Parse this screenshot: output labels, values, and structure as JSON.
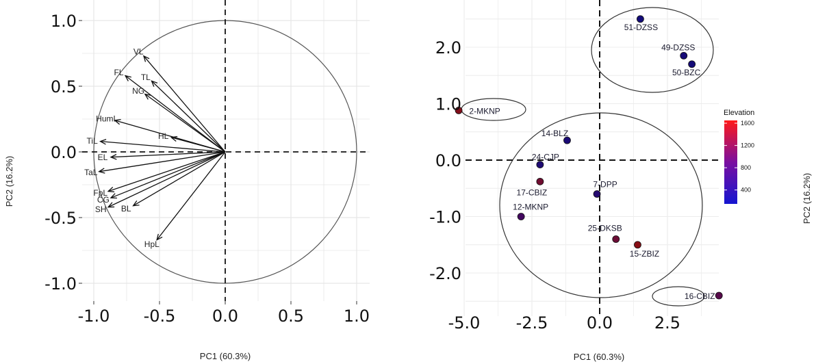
{
  "chart_data": [
    {
      "type": "scatter",
      "kind": "pca-variable-loadings",
      "xlabel": "PC1 (60.3%)",
      "ylabel": "PC2 (16.2%)",
      "xlim": [
        -1.0,
        1.0
      ],
      "ylim": [
        -1.0,
        1.0
      ],
      "x_ticks": [
        "-1.0",
        "-0.5",
        "0.0",
        "0.5",
        "1.0"
      ],
      "y_ticks": [
        "1.0",
        "0.5",
        "0.0",
        "-0.5",
        "-1.0"
      ],
      "grid": true,
      "correlation_circle": true,
      "loadings": [
        {
          "label": "VL",
          "x": -0.62,
          "y": 0.73
        },
        {
          "label": "TL",
          "x": -0.56,
          "y": 0.54
        },
        {
          "label": "FL",
          "x": -0.76,
          "y": 0.58
        },
        {
          "label": "NG",
          "x": -0.61,
          "y": 0.44
        },
        {
          "label": "HumL",
          "x": -0.84,
          "y": 0.24
        },
        {
          "label": "HL",
          "x": -0.41,
          "y": 0.11
        },
        {
          "label": "TiL",
          "x": -0.95,
          "y": 0.08
        },
        {
          "label": "EL",
          "x": -0.87,
          "y": -0.04
        },
        {
          "label": "TaL",
          "x": -0.96,
          "y": -0.15
        },
        {
          "label": "FpL",
          "x": -0.89,
          "y": -0.3
        },
        {
          "label": "CG",
          "x": -0.87,
          "y": -0.35
        },
        {
          "label": "SH",
          "x": -0.89,
          "y": -0.42
        },
        {
          "label": "BL",
          "x": -0.7,
          "y": -0.41
        },
        {
          "label": "HpL",
          "x": -0.52,
          "y": -0.67
        }
      ]
    },
    {
      "type": "scatter",
      "kind": "pca-individuals",
      "xlabel": "PC1 (60.3%)",
      "ylabel": "PC2 (16.2%)",
      "xlim": [
        -5.8,
        4.8
      ],
      "ylim": [
        -2.6,
        2.6
      ],
      "x_ticks": [
        "-5.0",
        "-2.5",
        "0.0",
        "2.5"
      ],
      "y_ticks": [
        "2.0",
        "1.0",
        "0.0",
        "-1.0",
        "-2.0"
      ],
      "grid": true,
      "legend": {
        "title": "Elevation",
        "placement": "right",
        "ticks": [
          "1600",
          "1200",
          "800",
          "400"
        ],
        "min": 150,
        "max": 1650,
        "colors": [
          "#1515d0",
          "#7a0fa0",
          "#ff1a1a"
        ]
      },
      "points": [
        {
          "label": "51-DZSS",
          "x": 1.5,
          "y": 2.5,
          "elevation": 250
        },
        {
          "label": "49-DZSS",
          "x": 3.1,
          "y": 1.85,
          "elevation": 300
        },
        {
          "label": "50-BZC",
          "x": 3.4,
          "y": 1.7,
          "elevation": 280
        },
        {
          "label": "2-MKNP",
          "x": -5.2,
          "y": 0.88,
          "elevation": 1550
        },
        {
          "label": "14-BLZ",
          "x": -1.2,
          "y": 0.35,
          "elevation": 350
        },
        {
          "label": "24-CJP",
          "x": -2.2,
          "y": -0.08,
          "elevation": 400
        },
        {
          "label": "17-CBIZ",
          "x": -2.2,
          "y": -0.38,
          "elevation": 1350
        },
        {
          "label": "7-DPP",
          "x": -0.1,
          "y": -0.6,
          "elevation": 500
        },
        {
          "label": "12-MKNP",
          "x": -2.9,
          "y": -1.0,
          "elevation": 900
        },
        {
          "label": "25-DKSB",
          "x": 0.6,
          "y": -1.4,
          "elevation": 1300
        },
        {
          "label": "15-ZBIZ",
          "x": 1.4,
          "y": -1.5,
          "elevation": 1600
        },
        {
          "label": "16-CBIZ",
          "x": 4.4,
          "y": -2.4,
          "elevation": 1100
        }
      ]
    }
  ],
  "labels": {
    "left_xlabel": "PC1 (60.3%)",
    "left_ylabel": "PC2 (16.2%)",
    "right_xlabel": "PC1 (60.3%)",
    "right_ylabel": "PC2 (16.2%)",
    "legend_title": "Elevation"
  }
}
